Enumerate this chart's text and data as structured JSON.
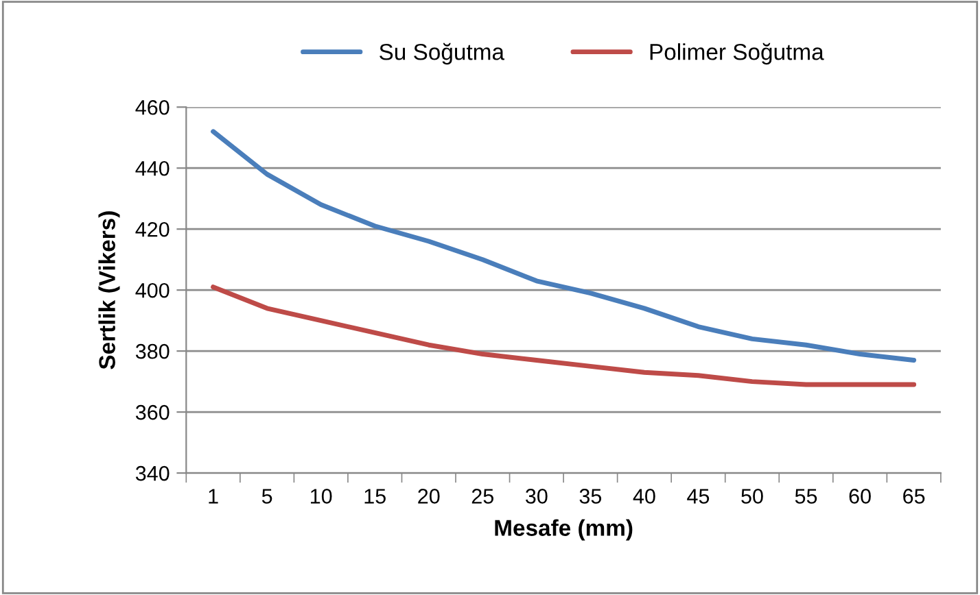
{
  "chart_data": {
    "type": "line",
    "xlabel": "Mesafe (mm)",
    "ylabel": "Sertlik (Vikers)",
    "categories": [
      "1",
      "5",
      "10",
      "15",
      "20",
      "25",
      "30",
      "35",
      "40",
      "45",
      "50",
      "55",
      "60",
      "65"
    ],
    "series": [
      {
        "name": "Su Soğutma",
        "color": "#4a7ebb",
        "values": [
          452,
          438,
          428,
          421,
          416,
          410,
          403,
          399,
          394,
          388,
          384,
          382,
          379,
          377
        ]
      },
      {
        "name": "Polimer Soğutma",
        "color": "#be4b48",
        "values": [
          401,
          394,
          390,
          386,
          382,
          379,
          377,
          375,
          373,
          372,
          370,
          369,
          369,
          369
        ]
      }
    ],
    "ylim": [
      340,
      460
    ],
    "yticks": [
      340,
      360,
      380,
      400,
      420,
      440,
      460
    ],
    "grid": "y",
    "legend": "top",
    "marker": "none",
    "line_style": "solid"
  }
}
